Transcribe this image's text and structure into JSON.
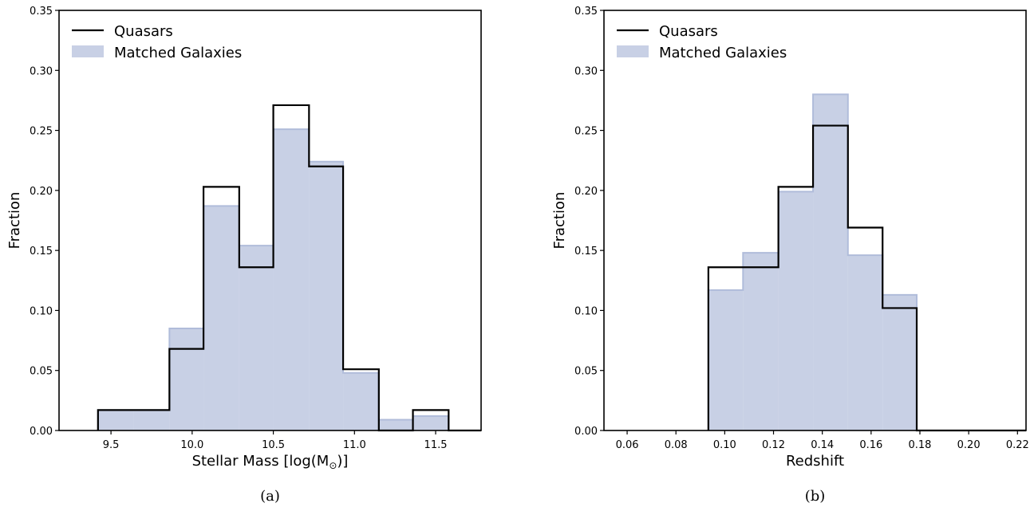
{
  "chart_data": [
    {
      "type": "histogram",
      "panel_label": "(a)",
      "xlabel_text": "Stellar Mass [log(M",
      "xlabel_sub": "⊙",
      "xlabel_close": ")]",
      "ylabel": "Fraction",
      "xlim": [
        9.18,
        11.78
      ],
      "ylim": [
        0,
        0.35
      ],
      "xticks": [
        "9.5",
        "10.0",
        "10.5",
        "11.0",
        "11.5"
      ],
      "xtick_values": [
        9.5,
        10.0,
        10.5,
        11.0,
        11.5
      ],
      "yticks": [
        "0.00",
        "0.05",
        "0.10",
        "0.15",
        "0.20",
        "0.25",
        "0.30",
        "0.35"
      ],
      "ytick_values": [
        0,
        0.05,
        0.1,
        0.15,
        0.2,
        0.25,
        0.3,
        0.35
      ],
      "legend": {
        "placement": "top-left",
        "entries": [
          "Quasars",
          "Matched Galaxies"
        ]
      },
      "bin_edges": [
        9.42,
        9.64,
        9.86,
        10.07,
        10.29,
        10.5,
        10.72,
        10.93,
        11.15,
        11.36,
        11.58
      ],
      "series": [
        {
          "name": "Quasars",
          "style": "step",
          "color": "#000000",
          "values": [
            0.017,
            0.017,
            0.068,
            0.203,
            0.136,
            0.271,
            0.22,
            0.051,
            0.0,
            0.017
          ]
        },
        {
          "name": "Matched Galaxies",
          "style": "filled-step",
          "color": "#b0bcda",
          "values": [
            0.017,
            0.017,
            0.085,
            0.187,
            0.154,
            0.251,
            0.224,
            0.048,
            0.009,
            0.012
          ]
        }
      ]
    },
    {
      "type": "histogram",
      "panel_label": "(b)",
      "xlabel_text": "Redshift",
      "xlabel_sub": "",
      "xlabel_close": "",
      "ylabel": "Fraction",
      "xlim": [
        0.0505,
        0.2235
      ],
      "ylim": [
        0,
        0.35
      ],
      "xticks": [
        "0.06",
        "0.08",
        "0.10",
        "0.12",
        "0.14",
        "0.16",
        "0.18",
        "0.20",
        "0.22"
      ],
      "xtick_values": [
        0.06,
        0.08,
        0.1,
        0.12,
        0.14,
        0.16,
        0.18,
        0.2,
        0.22
      ],
      "yticks": [
        "0.00",
        "0.05",
        "0.10",
        "0.15",
        "0.20",
        "0.25",
        "0.30",
        "0.35"
      ],
      "ytick_values": [
        0,
        0.05,
        0.1,
        0.15,
        0.2,
        0.25,
        0.3,
        0.35
      ],
      "legend": {
        "placement": "top-left",
        "entries": [
          "Quasars",
          "Matched Galaxies"
        ]
      },
      "bin_edges": [
        0.0933,
        0.1075,
        0.122,
        0.1362,
        0.1505,
        0.1647,
        0.1787
      ],
      "series": [
        {
          "name": "Quasars",
          "style": "step",
          "color": "#000000",
          "values": [
            0.136,
            0.136,
            0.203,
            0.254,
            0.169,
            0.102
          ]
        },
        {
          "name": "Matched Galaxies",
          "style": "filled-step",
          "color": "#b0bcda",
          "values": [
            0.117,
            0.148,
            0.199,
            0.28,
            0.146,
            0.113
          ]
        }
      ]
    }
  ]
}
